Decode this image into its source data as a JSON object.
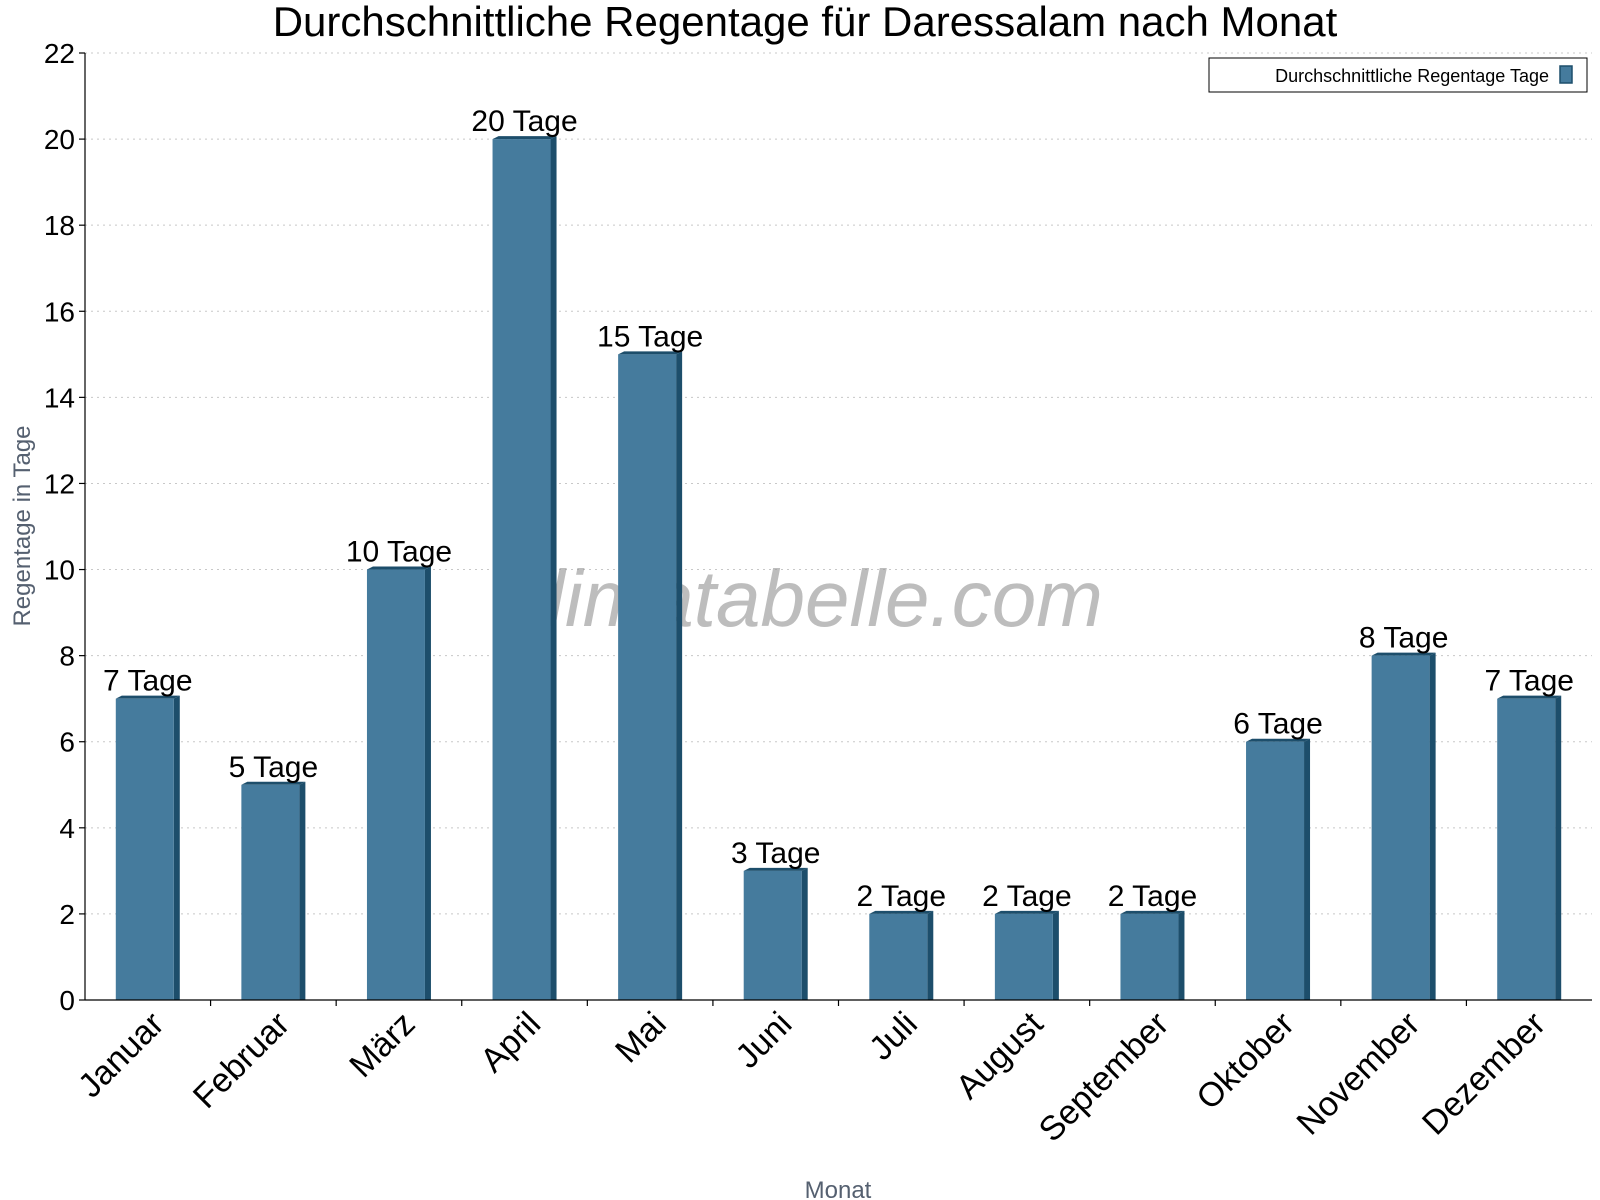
{
  "chart_data": {
    "type": "bar",
    "title": "Durchschnittliche Regentage für Daressalam nach Monat",
    "xlabel": "Monat",
    "ylabel": "Regentage in Tage",
    "categories": [
      "Januar",
      "Februar",
      "März",
      "April",
      "Mai",
      "Juni",
      "Juli",
      "August",
      "September",
      "Oktober",
      "November",
      "Dezember"
    ],
    "series": [
      {
        "name": "Durchschnittliche Regentage Tage",
        "values": [
          7,
          5,
          10,
          20,
          15,
          3,
          2,
          2,
          2,
          6,
          8,
          7
        ],
        "data_labels": [
          "7 Tage",
          "5 Tage",
          "10 Tage",
          "20 Tage",
          "15 Tage",
          "3 Tage",
          "2 Tage",
          "2 Tage",
          "2 Tage",
          "6 Tage",
          "8 Tage",
          "7 Tage"
        ],
        "color": "#457b9d"
      }
    ],
    "ylim": [
      0,
      22
    ],
    "yticks": [
      0,
      2,
      4,
      6,
      8,
      10,
      12,
      14,
      16,
      18,
      20,
      22
    ],
    "grid": true,
    "legend_position": "top-right",
    "watermark": "klimatabelle.com"
  }
}
